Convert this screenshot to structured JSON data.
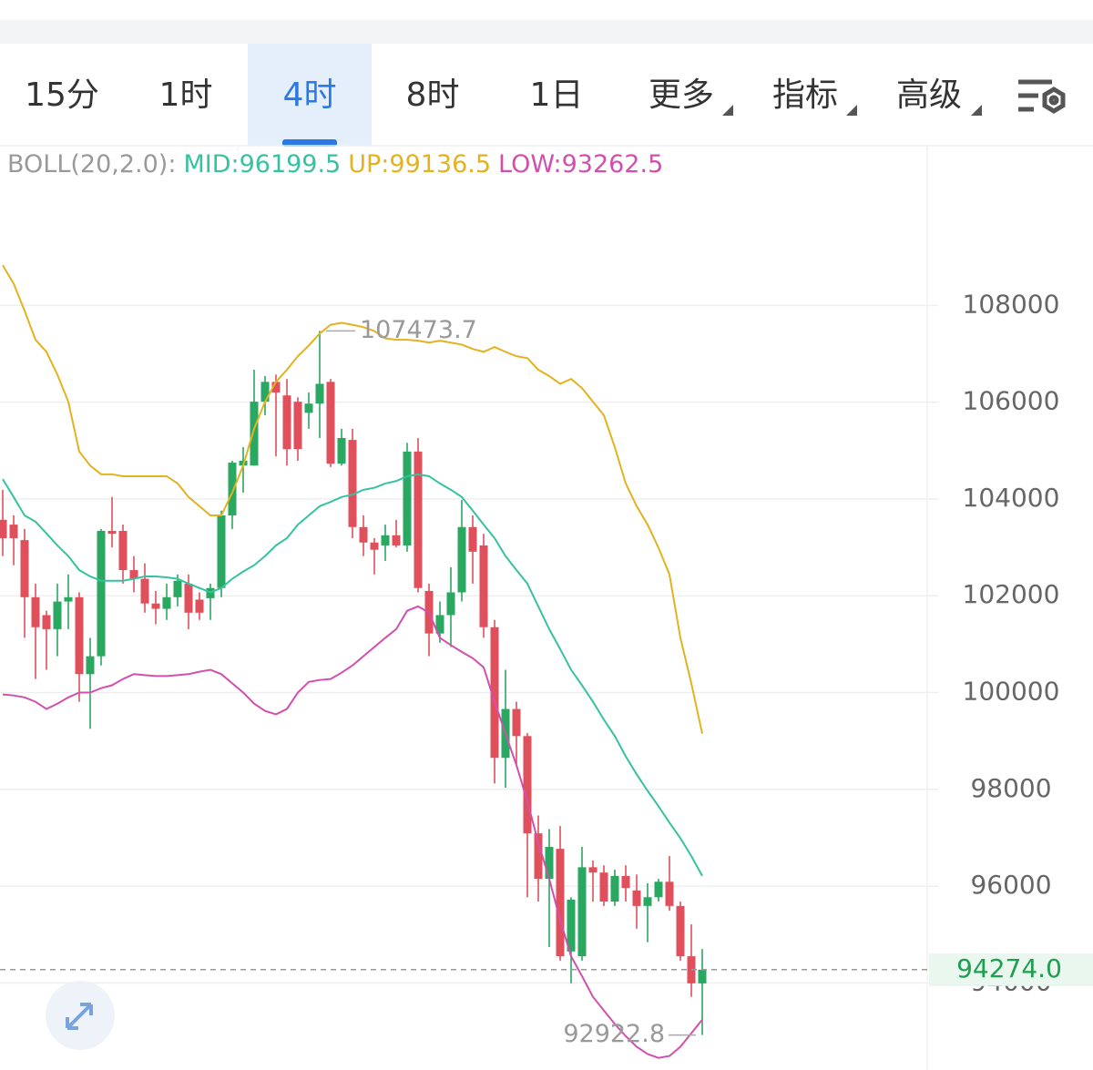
{
  "tabs": [
    "15分",
    "1时",
    "4时",
    "8时",
    "1日",
    "更多",
    "指标",
    "高级"
  ],
  "active_tab": 2,
  "chart_data": {
    "type": "candlestick",
    "indicator": "BOLL(20,2.0):",
    "up_color": "#2aa760",
    "down_color": "#e0505c",
    "open": [
      103570,
      103470,
      103150,
      101970,
      101600,
      101310,
      101880,
      101970,
      100380,
      100750,
      103340,
      103340,
      102530,
      102350,
      101840,
      101730,
      101970,
      102250,
      101920,
      101950,
      102160,
      103660,
      104690,
      104690,
      106010,
      106420,
      106140,
      106010,
      105780,
      105970,
      106420,
      104730,
      105220,
      103420,
      103100,
      103040,
      103250,
      103040,
      104980,
      102100,
      101220,
      101600,
      102070,
      103420,
      103040,
      101350,
      98650,
      99660,
      99100,
      97090,
      96150,
      96770,
      94650,
      94550,
      96390,
      96280,
      95680,
      96210,
      95910,
      95590,
      95770,
      96090,
      95590,
      94550,
      93990
    ],
    "high": [
      104190,
      103660,
      103380,
      102250,
      101690,
      102250,
      102440,
      102070,
      101130,
      103380,
      104040,
      103470,
      102820,
      102670,
      102100,
      102250,
      102440,
      102440,
      102070,
      102250,
      103760,
      104790,
      105070,
      106670,
      106540,
      106570,
      106480,
      106100,
      106200,
      107473.7,
      106480,
      105450,
      105450,
      103660,
      103190,
      103470,
      103570,
      105160,
      105260,
      102250,
      101880,
      102590,
      103980,
      103660,
      103280,
      101500,
      100470,
      99810,
      99160,
      97460,
      97180,
      97240,
      95770,
      96810,
      96530,
      96430,
      96340,
      96430,
      96240,
      96060,
      96150,
      96620,
      95680,
      95210,
      94700
    ],
    "low": [
      102820,
      102630,
      101130,
      100280,
      100470,
      100750,
      101310,
      99810,
      99250,
      100560,
      103000,
      102250,
      102070,
      101650,
      101410,
      101500,
      101780,
      101310,
      101500,
      101500,
      101970,
      103380,
      104130,
      104690,
      105730,
      104880,
      104690,
      104790,
      105450,
      105260,
      104660,
      104690,
      103190,
      102820,
      102440,
      102720,
      103000,
      102910,
      102070,
      100750,
      101030,
      100940,
      101880,
      102250,
      101130,
      98120,
      98030,
      98500,
      95770,
      95680,
      94740,
      94460,
      93990,
      94460,
      95680,
      95590,
      95590,
      95680,
      95120,
      94840,
      95680,
      95490,
      94460,
      93710,
      92922.8
    ],
    "close": [
      103190,
      103190,
      101970,
      101350,
      101310,
      101880,
      101970,
      100380,
      100750,
      103340,
      103280,
      102530,
      102350,
      101840,
      101730,
      101970,
      102310,
      101650,
      101650,
      102160,
      103660,
      104750,
      104790,
      106010,
      106420,
      106200,
      105030,
      105030,
      105970,
      106380,
      104730,
      105260,
      103420,
      103100,
      102950,
      103250,
      103040,
      104980,
      102160,
      101220,
      101600,
      102070,
      103420,
      102910,
      101350,
      98650,
      99660,
      99100,
      97090,
      96150,
      96810,
      94550,
      95720,
      96390,
      96280,
      95680,
      96210,
      95960,
      95590,
      95770,
      96090,
      95590,
      94550,
      93990,
      94274
    ],
    "series": [
      {
        "name": "MID:96199.5",
        "color": "#36c2a0",
        "values": [
          104410,
          104040,
          103660,
          103530,
          103290,
          103040,
          102820,
          102530,
          102400,
          102310,
          102310,
          102310,
          102350,
          102400,
          102400,
          102380,
          102350,
          102250,
          102160,
          102070,
          102160,
          102350,
          102500,
          102630,
          102820,
          103040,
          103190,
          103470,
          103660,
          103850,
          103940,
          104040,
          104090,
          104190,
          104230,
          104320,
          104370,
          104470,
          104510,
          104470,
          104320,
          104190,
          104040,
          103760,
          103470,
          103190,
          102820,
          102530,
          102250,
          101780,
          101310,
          100900,
          100470,
          100150,
          99810,
          99440,
          99100,
          98680,
          98310,
          97970,
          97650,
          97310,
          96990,
          96620,
          96210
        ]
      },
      {
        "name": "UP:99136.5",
        "color": "#e3b21f",
        "values": [
          108830,
          108450,
          107890,
          107290,
          107040,
          106570,
          106010,
          104980,
          104690,
          104510,
          104510,
          104470,
          104470,
          104470,
          104470,
          104470,
          104320,
          104040,
          103850,
          103660,
          103660,
          104130,
          104690,
          105450,
          106010,
          106420,
          106670,
          106950,
          107170,
          107420,
          107600,
          107640,
          107600,
          107550,
          107470,
          107320,
          107290,
          107290,
          107270,
          107230,
          107270,
          107230,
          107190,
          107100,
          107040,
          107140,
          107040,
          106950,
          106910,
          106670,
          106540,
          106380,
          106480,
          106290,
          106010,
          105730,
          105070,
          104320,
          103850,
          103470,
          102990,
          102440,
          101130,
          100190,
          99150
        ]
      },
      {
        "name": "LOW:93262.5",
        "color": "#d24fae",
        "values": [
          99960,
          99940,
          99900,
          99810,
          99660,
          99770,
          99900,
          100000,
          100000,
          100090,
          100150,
          100280,
          100380,
          100360,
          100340,
          100340,
          100360,
          100380,
          100430,
          100470,
          100380,
          100190,
          100000,
          99770,
          99620,
          99550,
          99660,
          100000,
          100220,
          100260,
          100280,
          100410,
          100560,
          100750,
          100940,
          101130,
          101310,
          101690,
          101780,
          101650,
          101130,
          100980,
          100840,
          100710,
          100520,
          99810,
          99150,
          98500,
          97750,
          96900,
          96150,
          95300,
          94550,
          94140,
          93710,
          93430,
          93150,
          92900,
          92680,
          92530,
          92450,
          92490,
          92680,
          92960,
          93240
        ]
      }
    ],
    "ylim": [
      92200,
      111300
    ],
    "yticks": [
      108000,
      106000,
      104000,
      102000,
      100000,
      98000,
      96000,
      94000
    ],
    "grid": true,
    "high_label": 107473.7,
    "low_label": 92922.8,
    "last_price": {
      "value": 94274,
      "label": "94274.0"
    }
  }
}
